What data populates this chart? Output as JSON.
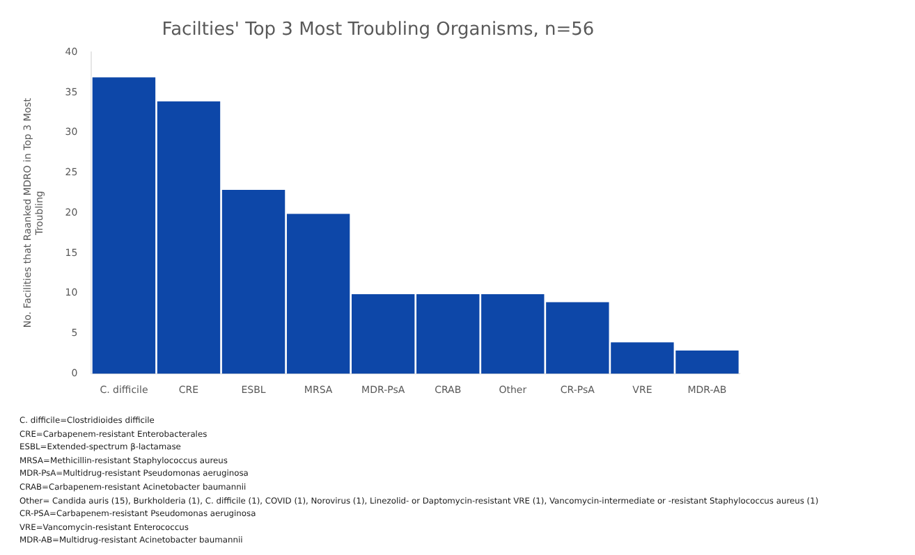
{
  "chart_data": {
    "type": "bar",
    "title": "Facilties' Top 3 Most Troubling Organisms, n=56",
    "ylabel": "No. Facilities that Raanked MDRO in Top 3 Most Troubling",
    "categories": [
      "C. difficile",
      "CRE",
      "ESBL",
      "MRSA",
      "MDR-PsA",
      "CRAB",
      "Other",
      "CR-PsA",
      "VRE",
      "MDR-AB"
    ],
    "values": [
      37,
      34,
      23,
      20,
      10,
      10,
      10,
      9,
      4,
      3
    ],
    "color": "#0d47a8",
    "ylim": [
      0,
      40
    ],
    "yticks": [
      0,
      5,
      10,
      15,
      20,
      25,
      30,
      35,
      40
    ],
    "grid": false,
    "annotations": [
      "C. difficile=Clostridioides difficile",
      "CRE=Carbapenem-resistant Enterobacterales",
      "ESBL=Extended-spectrum β-lactamase",
      "MRSA=Methicillin-resistant Staphylococcus aureus",
      "MDR-PsA=Multidrug-resistant Pseudomonas aeruginosa",
      "CRAB=Carbapenem-resistant Acinetobacter baumannii",
      "Other= Candida auris (15), Burkholderia (1), C. difficile (1), COVID (1), Norovirus (1), Linezolid- or Daptomycin-resistant VRE (1), Vancomycin-intermediate or -resistant Staphylococcus aureus (1)",
      "CR-PSA=Carbapenem-resistant Pseudomonas aeruginosa",
      "VRE=Vancomycin-resistant Enterococcus",
      "MDR-AB=Multidrug-resistant Acinetobacter baumannii"
    ]
  }
}
